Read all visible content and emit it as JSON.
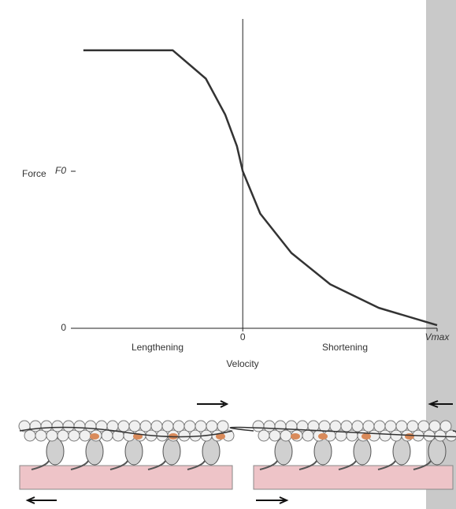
{
  "chart_data": {
    "type": "line",
    "y_label": "Force",
    "x_label": "Velocity",
    "region_labels": [
      "Lengthening",
      "Shortening"
    ],
    "x": [
      -0.82,
      -0.36,
      -0.19,
      -0.09,
      -0.03,
      0,
      0.09,
      0.25,
      0.45,
      0.7,
      1.0
    ],
    "series": [
      {
        "color": "#333333",
        "values": [
          1.77,
          1.77,
          1.59,
          1.36,
          1.16,
          1.0,
          0.73,
          0.48,
          0.28,
          0.13,
          0.02
        ]
      }
    ],
    "xlim": [
      -0.86,
      1.0
    ],
    "ylim": [
      0,
      1.97
    ],
    "xticks": [
      0,
      {
        "value": 1.0,
        "label": "Vmax"
      }
    ],
    "yticks": [
      0,
      {
        "value": 1.0,
        "label": "F0"
      }
    ]
  }
}
